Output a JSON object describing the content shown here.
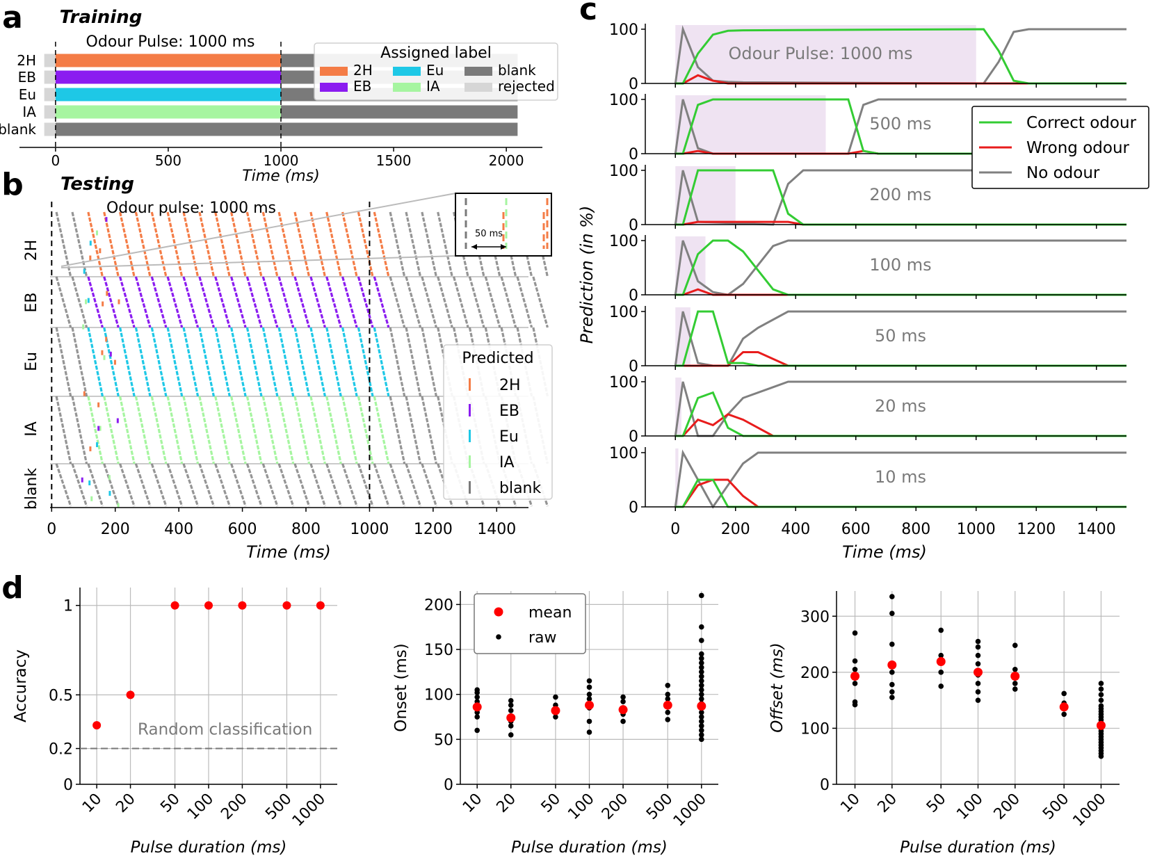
{
  "panels": {
    "a": "a",
    "b": "b",
    "c": "c",
    "d": "d"
  },
  "colors": {
    "2H": "#f47c46",
    "EB": "#8b1cf0",
    "Eu": "#1ec8e6",
    "IA": "#a6f5a0",
    "blank": "#7a7a7a",
    "rejected": "#d6d6d6",
    "correct": "#33cc33",
    "wrong": "#e81c1c",
    "none": "#808080",
    "pulse": "#efe3f2",
    "mean": "#ff0000"
  },
  "chart_data": [
    {
      "id": "a",
      "type": "bar",
      "title": "Training",
      "annotation": "Odour Pulse: 1000 ms",
      "categories": [
        "2H",
        "EB",
        "Eu",
        "IA",
        "blank"
      ],
      "segments": [
        {
          "row": "2H",
          "label": "2H",
          "start": 0,
          "end": 1000
        },
        {
          "row": "2H",
          "label": "blank",
          "start": 1000,
          "end": 2050
        },
        {
          "row": "EB",
          "label": "EB",
          "start": 0,
          "end": 1000
        },
        {
          "row": "EB",
          "label": "blank",
          "start": 1000,
          "end": 2050
        },
        {
          "row": "Eu",
          "label": "Eu",
          "start": 0,
          "end": 1000
        },
        {
          "row": "Eu",
          "label": "blank",
          "start": 1000,
          "end": 2050
        },
        {
          "row": "IA",
          "label": "IA",
          "start": 0,
          "end": 1000
        },
        {
          "row": "IA",
          "label": "blank",
          "start": 1000,
          "end": 2050
        },
        {
          "row": "blank",
          "label": "blank",
          "start": 0,
          "end": 2050
        }
      ],
      "rejected_start": -50,
      "xlim": [
        -160,
        2160
      ],
      "xticks": [
        0,
        500,
        1000,
        1500,
        2000
      ],
      "xlabel": "Time (ms)",
      "vlines": [
        0,
        1000
      ],
      "legend": {
        "title": "Assigned label",
        "entries": [
          "2H",
          "EB",
          "Eu",
          "IA",
          "blank",
          "rejected"
        ]
      }
    },
    {
      "id": "b",
      "type": "scatter",
      "title": "Testing",
      "annotation": "Odour pulse: 1000 ms",
      "rows": [
        "2H",
        "EB",
        "Eu",
        "IA",
        "blank"
      ],
      "trials_per_row": [
        8,
        8,
        10,
        10,
        6
      ],
      "xlim": [
        -5,
        1500
      ],
      "xticks": [
        0,
        200,
        400,
        600,
        800,
        1000,
        1200,
        1400
      ],
      "xlabel": "Time (ms)",
      "stimulus_period_ms": 50,
      "pulse_ms": 1000,
      "inset_label": "50 ms",
      "legend": {
        "title": "Predicted",
        "entries": [
          "2H",
          "EB",
          "Eu",
          "IA",
          "blank"
        ]
      }
    },
    {
      "id": "c",
      "type": "line",
      "xlim": [
        -100,
        1500
      ],
      "xticks": [
        0,
        200,
        400,
        600,
        800,
        1000,
        1200,
        1400
      ],
      "ylim": [
        0,
        100
      ],
      "yticks": [
        0,
        100
      ],
      "xlabel": "Time (ms)",
      "ylabel": "Prediction (in %)",
      "legend": [
        "Correct odour",
        "Wrong odour",
        "No odour"
      ],
      "subplots": [
        {
          "label": "Odour Pulse: 1000 ms",
          "pulse": 1000,
          "x": [
            0,
            25,
            75,
            125,
            175,
            225,
            1025,
            1075,
            1125,
            1175,
            1500
          ],
          "correct": [
            0,
            0,
            55,
            90,
            97,
            98,
            100,
            60,
            5,
            0,
            0
          ],
          "wrong": [
            0,
            0,
            15,
            5,
            0,
            0,
            0,
            0,
            0,
            0,
            0
          ],
          "none": [
            0,
            100,
            30,
            5,
            3,
            2,
            0,
            40,
            95,
            100,
            100
          ]
        },
        {
          "label": "500 ms",
          "pulse": 500,
          "x": [
            0,
            25,
            75,
            125,
            175,
            575,
            625,
            675,
            1500
          ],
          "correct": [
            0,
            0,
            90,
            100,
            100,
            100,
            5,
            0,
            0
          ],
          "wrong": [
            0,
            0,
            5,
            0,
            0,
            0,
            5,
            0,
            0
          ],
          "none": [
            0,
            100,
            10,
            0,
            0,
            0,
            90,
            100,
            100
          ]
        },
        {
          "label": "200 ms",
          "pulse": 200,
          "x": [
            0,
            25,
            75,
            325,
            375,
            425,
            1500
          ],
          "correct": [
            0,
            0,
            100,
            100,
            20,
            0,
            0
          ],
          "wrong": [
            0,
            0,
            5,
            5,
            5,
            0,
            0
          ],
          "none": [
            0,
            100,
            5,
            0,
            75,
            100,
            100
          ]
        },
        {
          "label": "100 ms",
          "pulse": 100,
          "x": [
            0,
            25,
            75,
            125,
            175,
            225,
            325,
            375,
            1500
          ],
          "correct": [
            0,
            0,
            75,
            100,
            100,
            80,
            10,
            0,
            0
          ],
          "wrong": [
            0,
            0,
            10,
            0,
            0,
            0,
            0,
            0,
            0
          ],
          "none": [
            0,
            100,
            25,
            5,
            0,
            20,
            90,
            100,
            100
          ]
        },
        {
          "label": "50 ms",
          "pulse": 50,
          "x": [
            0,
            25,
            75,
            125,
            175,
            225,
            275,
            375,
            1500
          ],
          "correct": [
            0,
            0,
            100,
            100,
            5,
            5,
            0,
            0,
            0
          ],
          "wrong": [
            0,
            0,
            0,
            0,
            0,
            25,
            25,
            0,
            0
          ],
          "none": [
            0,
            100,
            5,
            0,
            0,
            50,
            70,
            100,
            100
          ]
        },
        {
          "label": "20 ms",
          "pulse": 20,
          "x": [
            0,
            25,
            75,
            125,
            175,
            225,
            325,
            375,
            1500
          ],
          "correct": [
            0,
            0,
            70,
            80,
            15,
            0,
            0,
            0,
            0
          ],
          "wrong": [
            0,
            0,
            30,
            20,
            40,
            30,
            0,
            0,
            0
          ],
          "none": [
            0,
            100,
            0,
            0,
            40,
            70,
            90,
            100,
            100
          ]
        },
        {
          "label": "10 ms",
          "pulse": 10,
          "x": [
            0,
            25,
            75,
            125,
            175,
            225,
            275,
            375,
            1500
          ],
          "correct": [
            0,
            0,
            50,
            50,
            0,
            0,
            0,
            0,
            0
          ],
          "wrong": [
            0,
            0,
            40,
            50,
            50,
            20,
            0,
            0,
            0
          ],
          "none": [
            0,
            100,
            50,
            0,
            40,
            80,
            100,
            100,
            100
          ]
        }
      ]
    },
    {
      "id": "d1",
      "type": "scatter",
      "categories": [
        "10",
        "20",
        "50",
        "100",
        "200",
        "500",
        "1000"
      ],
      "xlabel": "Pulse duration (ms)",
      "ylabel": "Accuracy",
      "ylim": [
        0,
        1.1
      ],
      "yticks": [
        0.0,
        0.2,
        0.5,
        1.0
      ],
      "values": [
        0.33,
        0.5,
        1.0,
        1.0,
        1.0,
        1.0,
        1.0
      ],
      "baseline": 0.2,
      "baseline_label": "Random classification"
    },
    {
      "id": "d2",
      "type": "scatter",
      "categories": [
        "10",
        "20",
        "50",
        "100",
        "200",
        "500",
        "1000"
      ],
      "xlabel": "Pulse duration (ms)",
      "ylabel": "Onset (ms)",
      "ylim": [
        0,
        215
      ],
      "yticks": [
        0,
        50,
        100,
        150,
        200
      ],
      "mean": [
        86,
        74,
        82,
        88,
        83,
        88,
        87
      ],
      "raw": [
        [
          60,
          75,
          80,
          88,
          92,
          97,
          102,
          105
        ],
        [
          55,
          65,
          70,
          75,
          82,
          88,
          93
        ],
        [
          75,
          80,
          88,
          97
        ],
        [
          58,
          70,
          85,
          95,
          100,
          108,
          115
        ],
        [
          70,
          78,
          85,
          92,
          97
        ],
        [
          72,
          80,
          88,
          95,
          100,
          110
        ],
        [
          50,
          55,
          60,
          65,
          70,
          75,
          80,
          85,
          90,
          95,
          100,
          105,
          110,
          115,
          120,
          125,
          130,
          135,
          140,
          145,
          160,
          175,
          210
        ]
      ],
      "legend": [
        "mean",
        "raw"
      ]
    },
    {
      "id": "d3",
      "type": "scatter",
      "categories": [
        "10",
        "20",
        "50",
        "100",
        "200",
        "500",
        "1000"
      ],
      "xlabel": "Pulse duration (ms)",
      "ylabel": "Offset (ms)",
      "ylim": [
        0,
        345
      ],
      "yticks": [
        0,
        100,
        200,
        300
      ],
      "mean": [
        193,
        213,
        219,
        200,
        193,
        138,
        105
      ],
      "raw": [
        [
          142,
          147,
          180,
          195,
          205,
          220,
          270
        ],
        [
          155,
          165,
          178,
          200,
          215,
          250,
          305,
          335
        ],
        [
          175,
          200,
          220,
          230,
          275
        ],
        [
          150,
          165,
          180,
          195,
          215,
          230,
          245,
          255
        ],
        [
          170,
          180,
          190,
          205,
          248
        ],
        [
          125,
          135,
          145,
          162
        ],
        [
          50,
          55,
          60,
          65,
          70,
          75,
          80,
          85,
          90,
          95,
          100,
          105,
          110,
          115,
          120,
          125,
          130,
          135,
          140,
          150,
          160,
          170,
          180
        ]
      ],
      "legend": [
        "mean",
        "raw"
      ]
    }
  ]
}
